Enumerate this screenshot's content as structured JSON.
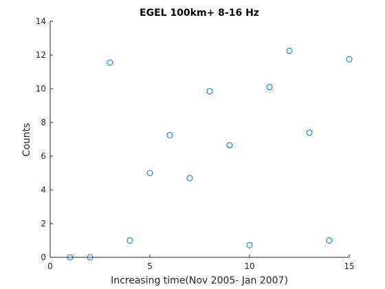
{
  "chart_data": {
    "type": "scatter",
    "title": "EGEL 100km+   8-16 Hz",
    "xlabel": "Increasing time(Nov 2005- Jan 2007)",
    "ylabel": "Counts",
    "xlim": [
      0,
      15
    ],
    "ylim": [
      0,
      14
    ],
    "xticks": [
      0,
      5,
      10,
      15
    ],
    "xtick_labels": [
      "0",
      "5",
      "10",
      "15"
    ],
    "yticks": [
      0,
      2,
      4,
      6,
      8,
      10,
      12,
      14
    ],
    "ytick_labels": [
      "0",
      "2",
      "4",
      "6",
      "8",
      "10",
      "12",
      "14"
    ],
    "grid": false,
    "marker": "circle",
    "marker_color": "#0072BD",
    "x": [
      1,
      2,
      3,
      4,
      5,
      6,
      7,
      8,
      9,
      10,
      11,
      12,
      13,
      14,
      15
    ],
    "y": [
      0,
      0,
      11.55,
      1.0,
      5.0,
      7.25,
      4.7,
      9.85,
      6.65,
      0.72,
      10.1,
      12.25,
      7.4,
      1.0,
      11.75
    ]
  }
}
